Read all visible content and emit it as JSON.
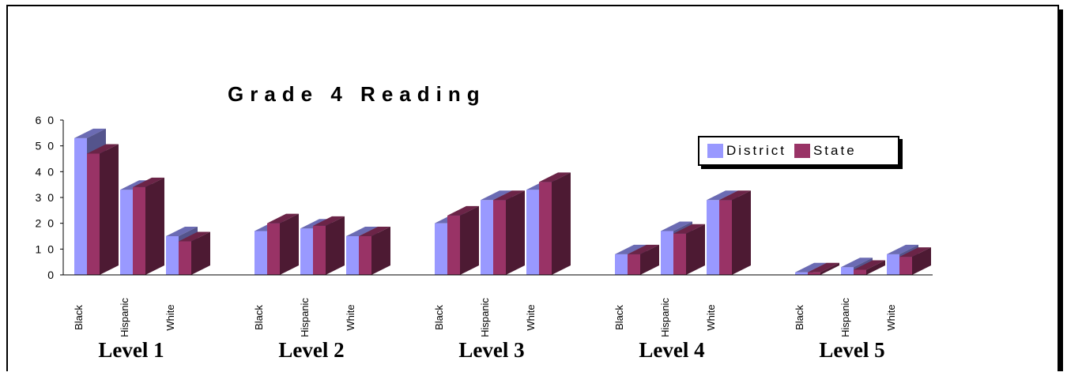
{
  "chart_data": {
    "type": "bar",
    "title": "Grade 4 Reading",
    "groups": [
      "Level 1",
      "Level 2",
      "Level 3",
      "Level 4",
      "Level 5"
    ],
    "categories": [
      "Black",
      "Hispanic",
      "White"
    ],
    "series": [
      {
        "name": "District",
        "color": "#9999ff",
        "values": [
          [
            53,
            33,
            15
          ],
          [
            17,
            18,
            15
          ],
          [
            20,
            29,
            33
          ],
          [
            8,
            17,
            29
          ],
          [
            1,
            3,
            8
          ]
        ]
      },
      {
        "name": "State",
        "color": "#993366",
        "values": [
          [
            47,
            34,
            13
          ],
          [
            20,
            19,
            15
          ],
          [
            23,
            29,
            36
          ],
          [
            8,
            16,
            29
          ],
          [
            1,
            2,
            7
          ]
        ]
      }
    ],
    "ylim": [
      0,
      60
    ],
    "yticks": [
      0,
      10,
      20,
      30,
      40,
      50,
      60
    ],
    "ytick_labels": [
      "0",
      "1 0",
      "2 0",
      "3 0",
      "4 0",
      "5 0",
      "6 0"
    ],
    "grid": false,
    "legend_position": "top-right"
  }
}
